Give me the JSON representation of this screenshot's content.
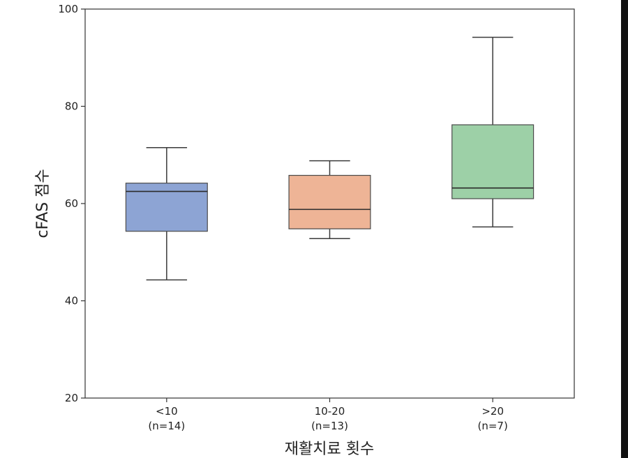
{
  "chart_data": {
    "type": "box",
    "xlabel": "재활치료 횟수",
    "ylabel": "cFAS 점수",
    "ylim": [
      20,
      100
    ],
    "yticks": [
      20,
      40,
      60,
      80,
      100
    ],
    "grid": false,
    "categories": [
      {
        "label": "<10",
        "n_label": "(n=14)"
      },
      {
        "label": "10-20",
        "n_label": "(n=13)"
      },
      {
        "label": ">20",
        "n_label": "(n=7)"
      }
    ],
    "boxes": [
      {
        "category": "<10",
        "whisker_low": 44.3,
        "q1": 54.3,
        "median": 62.5,
        "q3": 64.2,
        "whisker_high": 71.5,
        "color": "#8da4d4"
      },
      {
        "category": "10-20",
        "whisker_low": 52.8,
        "q1": 54.8,
        "median": 58.8,
        "q3": 65.8,
        "whisker_high": 68.8,
        "color": "#eeb496"
      },
      {
        "category": ">20",
        "whisker_low": 55.2,
        "q1": 61.0,
        "median": 63.2,
        "q3": 76.2,
        "whisker_high": 94.2,
        "color": "#9dd0a7"
      }
    ]
  }
}
